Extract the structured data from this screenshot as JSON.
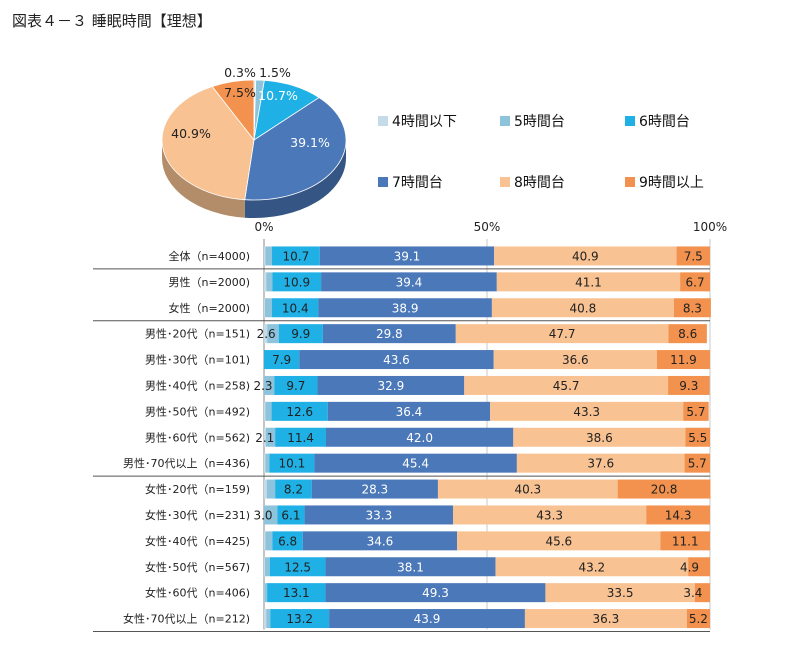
{
  "title": "図表４－３ 睡眠時間【理想】",
  "colors": {
    "4時間以下": "#c5dbe8",
    "5時間台": "#8ec3dc",
    "6時間台": "#1fb0e6",
    "7時間台": "#4a78b8",
    "8時間台": "#f8c293",
    "9時間以上": "#f2924e"
  },
  "chart_data": [
    {
      "type": "pie",
      "categories": [
        "4時間以下",
        "5時間台",
        "6時間台",
        "7時間台",
        "8時間台",
        "9時間以上"
      ],
      "values": [
        0.3,
        1.5,
        10.7,
        39.1,
        40.9,
        7.5
      ],
      "labels": [
        "0.3%",
        "1.5%",
        "10.7%",
        "39.1%",
        "40.9%",
        "7.5%"
      ],
      "legend": "right"
    },
    {
      "type": "bar",
      "orientation": "horizontal",
      "stacked": true,
      "xlim": [
        0,
        100
      ],
      "x_ticks": [
        "0%",
        "50%",
        "100%"
      ],
      "categories": [
        "全体（n=4000)",
        "男性（n=2000)",
        "女性（n=2000)",
        "男性･20代（n=151)",
        "男性･30代（n=101)",
        "男性･40代（n=258)",
        "男性･50代（n=492)",
        "男性･60代（n=562)",
        "男性･70代以上（n=436)",
        "女性･20代（n=159)",
        "女性･30代（n=231)",
        "女性･40代（n=425)",
        "女性･50代（n=567)",
        "女性･60代（n=406)",
        "女性･70代以上（n=212)"
      ],
      "series": [
        {
          "name": "4時間以下",
          "values": [
            0.3,
            0.5,
            0.2,
            0.7,
            0.0,
            0.0,
            0.3,
            0.4,
            0.3,
            0.6,
            0.0,
            0.3,
            0.2,
            0.1,
            0.5
          ]
        },
        {
          "name": "5時間台",
          "values": [
            1.5,
            1.4,
            1.6,
            2.6,
            0.0,
            2.3,
            1.4,
            2.1,
            0.9,
            1.9,
            3.0,
            1.6,
            1.1,
            0.6,
            0.9
          ]
        },
        {
          "name": "6時間台",
          "values": [
            10.7,
            10.9,
            10.4,
            9.9,
            7.9,
            9.7,
            12.6,
            11.4,
            10.1,
            8.2,
            6.1,
            6.8,
            12.5,
            13.1,
            13.2
          ]
        },
        {
          "name": "7時間台",
          "values": [
            39.1,
            39.4,
            38.9,
            29.8,
            43.6,
            32.9,
            36.4,
            42.0,
            45.4,
            28.3,
            33.3,
            34.6,
            38.1,
            49.3,
            43.9
          ]
        },
        {
          "name": "8時間台",
          "values": [
            40.9,
            41.1,
            40.8,
            47.7,
            36.6,
            45.7,
            43.3,
            38.6,
            37.6,
            40.3,
            43.3,
            45.6,
            43.2,
            33.5,
            36.3
          ]
        },
        {
          "name": "9時間以上",
          "values": [
            7.5,
            6.7,
            8.3,
            8.6,
            11.9,
            9.3,
            5.7,
            5.5,
            5.7,
            20.8,
            14.3,
            11.1,
            4.9,
            3.4,
            5.2
          ]
        }
      ],
      "labeled_values": [
        [
          "",
          "",
          "10.7",
          "39.1",
          "40.9",
          "7.5"
        ],
        [
          "",
          "",
          "10.9",
          "39.4",
          "41.1",
          "6.7"
        ],
        [
          "",
          "",
          "10.4",
          "38.9",
          "40.8",
          "8.3"
        ],
        [
          "",
          "2.6",
          "9.9",
          "29.8",
          "47.7",
          "8.6"
        ],
        [
          "",
          "",
          "7.9",
          "43.6",
          "36.6",
          "11.9"
        ],
        [
          "",
          "2.3",
          "9.7",
          "32.9",
          "45.7",
          "9.3"
        ],
        [
          "",
          "",
          "12.6",
          "36.4",
          "43.3",
          "5.7"
        ],
        [
          "",
          "2.1",
          "11.4",
          "42.0",
          "38.6",
          "5.5"
        ],
        [
          "",
          "",
          "10.1",
          "45.4",
          "37.6",
          "5.7"
        ],
        [
          "",
          "",
          "8.2",
          "28.3",
          "40.3",
          "20.8"
        ],
        [
          "",
          "3.0",
          "6.1",
          "33.3",
          "43.3",
          "14.3"
        ],
        [
          "",
          "",
          "6.8",
          "34.6",
          "45.6",
          "11.1"
        ],
        [
          "",
          "",
          "12.5",
          "38.1",
          "43.2",
          "4.9"
        ],
        [
          "",
          "",
          "13.1",
          "49.3",
          "33.5",
          "3.4"
        ],
        [
          "",
          "",
          "13.2",
          "43.9",
          "36.3",
          "5.2"
        ]
      ],
      "group_breaks_after": [
        0,
        2,
        8
      ]
    }
  ]
}
